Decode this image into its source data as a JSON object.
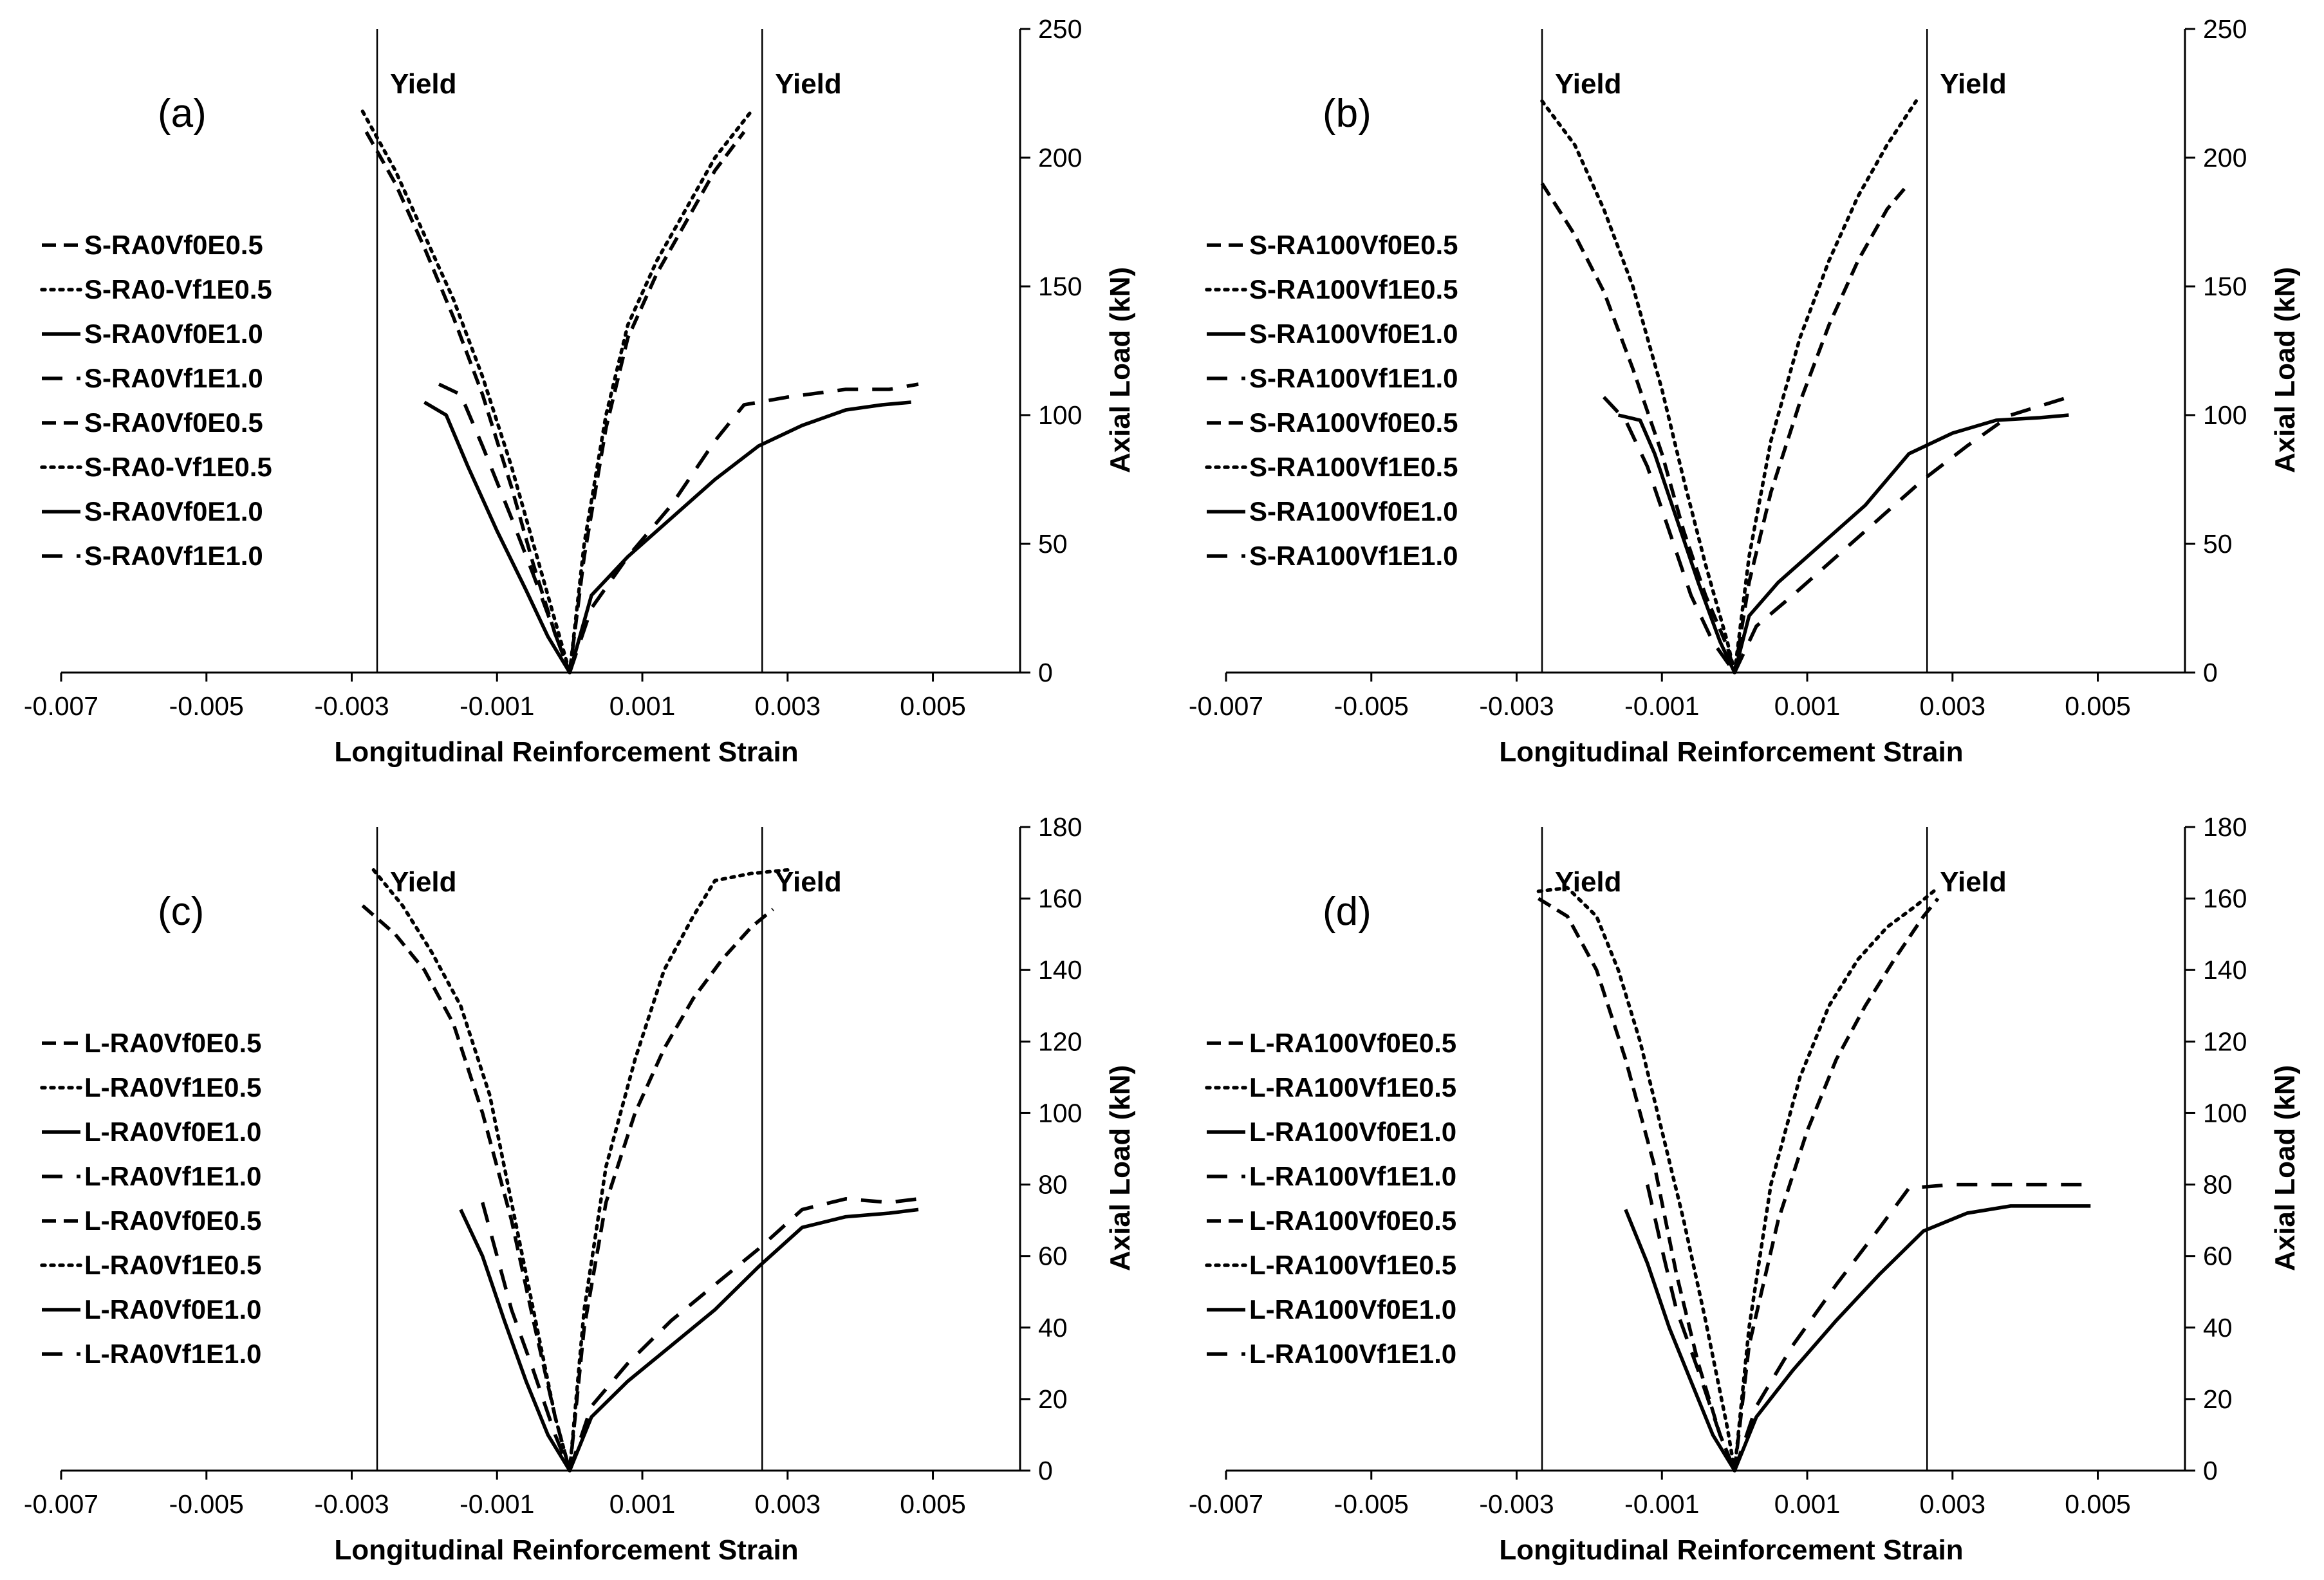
{
  "chart_data": [
    {
      "type": "line",
      "panel_label": "(a)",
      "xlabel": "Longitudinal Reinforcement Strain",
      "ylabel": "Axial Load (kN)",
      "xlim": [
        -0.007,
        0.0062
      ],
      "ylim": [
        0,
        250
      ],
      "x_ticks": [
        "-0.007",
        "-0.005",
        "-0.003",
        "-0.001",
        "0.001",
        "0.003",
        "0.005"
      ],
      "y_ticks": [
        "0",
        "50",
        "100",
        "150",
        "200",
        "250"
      ],
      "yield_lines": [
        {
          "x": -0.00265,
          "label": "Yield"
        },
        {
          "x": 0.00265,
          "label": "Yield"
        }
      ],
      "legend": [
        "S-RA0Vf0E0.5",
        "S-RA0-Vf1E0.5",
        "S-RA0Vf0E1.0",
        "S-RA0Vf1E1.0",
        "S-RA0Vf0E0.5",
        "S-RA0-Vf1E0.5",
        "S-RA0Vf0E1.0",
        "S-RA0Vf1E1.0"
      ],
      "legend_styles": [
        "dash",
        "dot",
        "solid",
        "longdash",
        "dash",
        "dot",
        "solid",
        "longdash"
      ],
      "series": [
        {
          "name": "S-RA0Vf0E0.5 (left)",
          "style": "dash",
          "x": [
            -0.0028,
            -0.0024,
            -0.002,
            -0.0016,
            -0.0012,
            -0.0008,
            -0.0005,
            -0.0002,
            0
          ],
          "y": [
            210,
            190,
            165,
            138,
            108,
            72,
            42,
            15,
            0
          ]
        },
        {
          "name": "S-RA0-Vf1E0.5 (left)",
          "style": "dot",
          "x": [
            -0.00285,
            -0.0024,
            -0.002,
            -0.0016,
            -0.0012,
            -0.0008,
            -0.0005,
            -0.0002,
            0
          ],
          "y": [
            218,
            195,
            170,
            145,
            115,
            80,
            50,
            20,
            0
          ]
        },
        {
          "name": "S-RA0Vf0E1.0 (left)",
          "style": "solid",
          "x": [
            -0.002,
            -0.0017,
            -0.0014,
            -0.001,
            -0.0006,
            -0.0003,
            0
          ],
          "y": [
            105,
            100,
            80,
            55,
            32,
            14,
            0
          ]
        },
        {
          "name": "S-RA0Vf1E1.0 (left)",
          "style": "longdash",
          "x": [
            -0.0018,
            -0.0015,
            -0.0012,
            -0.0008,
            -0.0005,
            -0.0002,
            0
          ],
          "y": [
            112,
            108,
            88,
            60,
            38,
            15,
            0
          ]
        },
        {
          "name": "S-RA0Vf0E0.5 (right)",
          "style": "dash",
          "x": [
            0,
            0.0002,
            0.0005,
            0.0008,
            0.0012,
            0.0016,
            0.002,
            0.0024
          ],
          "y": [
            0,
            45,
            95,
            130,
            155,
            175,
            195,
            210
          ]
        },
        {
          "name": "S-RA0-Vf1E0.5 (right)",
          "style": "dot",
          "x": [
            0,
            0.0002,
            0.0005,
            0.0008,
            0.0012,
            0.0016,
            0.002,
            0.0025
          ],
          "y": [
            0,
            50,
            100,
            135,
            160,
            180,
            200,
            218
          ]
        },
        {
          "name": "S-RA0Vf0E1.0 (right)",
          "style": "solid",
          "x": [
            0,
            0.0003,
            0.0008,
            0.0014,
            0.002,
            0.0026,
            0.0032,
            0.0038,
            0.0043,
            0.0047
          ],
          "y": [
            0,
            30,
            45,
            60,
            75,
            88,
            96,
            102,
            104,
            105
          ]
        },
        {
          "name": "S-RA0Vf1E1.0 (right)",
          "style": "longdash",
          "x": [
            0,
            0.0003,
            0.0008,
            0.0014,
            0.002,
            0.0024,
            0.003,
            0.0038,
            0.0044,
            0.0048
          ],
          "y": [
            0,
            25,
            45,
            65,
            90,
            104,
            107,
            110,
            110,
            112
          ]
        }
      ]
    },
    {
      "type": "line",
      "panel_label": "(b)",
      "xlabel": "Longitudinal Reinforcement Strain",
      "ylabel": "Axial Load (kN)",
      "xlim": [
        -0.007,
        0.0062
      ],
      "ylim": [
        0,
        250
      ],
      "x_ticks": [
        "-0.007",
        "-0.005",
        "-0.003",
        "-0.001",
        "0.001",
        "0.003",
        "0.005"
      ],
      "y_ticks": [
        "0",
        "50",
        "100",
        "150",
        "200",
        "250"
      ],
      "yield_lines": [
        {
          "x": -0.00265,
          "label": "Yield"
        },
        {
          "x": 0.00265,
          "label": "Yield"
        }
      ],
      "legend": [
        "S-RA100Vf0E0.5",
        "S-RA100Vf1E0.5",
        "S-RA100Vf0E1.0",
        "S-RA100Vf1E1.0",
        "S-RA100Vf0E0.5",
        "S-RA100Vf1E0.5",
        "S-RA100Vf0E1.0",
        "S-RA100Vf1E1.0"
      ],
      "legend_styles": [
        "dash",
        "dot",
        "solid",
        "longdash",
        "dash",
        "dot",
        "solid",
        "longdash"
      ],
      "series": [
        {
          "name": "S-RA100Vf0E0.5 (left)",
          "style": "dash",
          "x": [
            -0.00265,
            -0.0022,
            -0.0018,
            -0.0014,
            -0.001,
            -0.0007,
            -0.0004,
            -0.0001,
            0
          ],
          "y": [
            190,
            170,
            148,
            118,
            85,
            55,
            30,
            10,
            0
          ]
        },
        {
          "name": "S-RA100Vf1E0.5 (left)",
          "style": "dot",
          "x": [
            -0.00265,
            -0.0022,
            -0.0018,
            -0.0014,
            -0.001,
            -0.0007,
            -0.0004,
            -0.0001,
            0
          ],
          "y": [
            222,
            205,
            180,
            150,
            110,
            75,
            42,
            12,
            0
          ]
        },
        {
          "name": "S-RA100Vf0E1.0 (left)",
          "style": "solid",
          "x": [
            -0.0016,
            -0.0013,
            -0.0011,
            -0.0008,
            -0.0005,
            -0.0002,
            0
          ],
          "y": [
            100,
            98,
            85,
            60,
            35,
            12,
            0
          ]
        },
        {
          "name": "S-RA100Vf1E1.0 (left)",
          "style": "longdash",
          "x": [
            -0.0018,
            -0.0015,
            -0.0012,
            -0.0009,
            -0.0006,
            -0.0003,
            0
          ],
          "y": [
            107,
            98,
            80,
            55,
            30,
            12,
            0
          ]
        },
        {
          "name": "S-RA100Vf0E0.5 (right)",
          "style": "dash",
          "x": [
            0,
            0.0002,
            0.0005,
            0.0009,
            0.0013,
            0.0017,
            0.0021,
            0.0024
          ],
          "y": [
            0,
            35,
            70,
            105,
            135,
            160,
            180,
            190
          ]
        },
        {
          "name": "S-RA100Vf1E0.5 (right)",
          "style": "dot",
          "x": [
            0,
            0.0002,
            0.0005,
            0.0009,
            0.0013,
            0.0017,
            0.0021,
            0.0025
          ],
          "y": [
            0,
            45,
            90,
            130,
            160,
            185,
            205,
            222
          ]
        },
        {
          "name": "S-RA100Vf0E1.0 (right)",
          "style": "solid",
          "x": [
            0,
            0.0002,
            0.0006,
            0.0012,
            0.0018,
            0.0024,
            0.003,
            0.0036,
            0.0042,
            0.0046
          ],
          "y": [
            0,
            22,
            35,
            50,
            65,
            85,
            93,
            98,
            99,
            100
          ]
        },
        {
          "name": "S-RA100Vf1E1.0 (right)",
          "style": "longdash",
          "x": [
            0,
            0.0003,
            0.0008,
            0.0014,
            0.002,
            0.0026,
            0.0032,
            0.0038,
            0.0046
          ],
          "y": [
            0,
            18,
            30,
            45,
            60,
            75,
            88,
            100,
            107
          ]
        }
      ]
    },
    {
      "type": "line",
      "panel_label": "(c)",
      "xlabel": "Longitudinal Reinforcement Strain",
      "ylabel": "Axial Load (kN)",
      "xlim": [
        -0.007,
        0.0062
      ],
      "ylim": [
        0,
        180
      ],
      "x_ticks": [
        "-0.007",
        "-0.005",
        "-0.003",
        "-0.001",
        "0.001",
        "0.003",
        "0.005"
      ],
      "y_ticks": [
        "0",
        "20",
        "40",
        "60",
        "80",
        "100",
        "120",
        "140",
        "160",
        "180"
      ],
      "yield_lines": [
        {
          "x": -0.00265,
          "label": "Yield"
        },
        {
          "x": 0.00265,
          "label": "Yield"
        }
      ],
      "legend": [
        "L-RA0Vf0E0.5",
        "L-RA0Vf1E0.5",
        "L-RA0Vf0E1.0",
        "L-RA0Vf1E1.0",
        "L-RA0Vf0E0.5",
        "L-RA0Vf1E0.5",
        "L-RA0Vf0E1.0",
        "L-RA0Vf1E1.0"
      ],
      "legend_styles": [
        "dash",
        "dot",
        "solid",
        "longdash",
        "dash",
        "dot",
        "solid",
        "longdash"
      ],
      "series": [
        {
          "name": "L-RA0Vf0E0.5 (left)",
          "style": "dash",
          "x": [
            -0.00285,
            -0.0024,
            -0.002,
            -0.0016,
            -0.0012,
            -0.0008,
            -0.0005,
            -0.0002,
            0
          ],
          "y": [
            158,
            150,
            140,
            125,
            100,
            70,
            42,
            15,
            0
          ]
        },
        {
          "name": "L-RA0Vf1E0.5 (left)",
          "style": "dot",
          "x": [
            -0.0027,
            -0.0023,
            -0.0019,
            -0.0015,
            -0.0011,
            -0.0008,
            -0.0005,
            -0.0002,
            0
          ],
          "y": [
            168,
            158,
            145,
            130,
            105,
            75,
            45,
            15,
            0
          ]
        },
        {
          "name": "L-RA0Vf0E1.0 (left)",
          "style": "solid",
          "x": [
            -0.0015,
            -0.0012,
            -0.0009,
            -0.0006,
            -0.0003,
            0
          ],
          "y": [
            73,
            60,
            42,
            25,
            10,
            0
          ]
        },
        {
          "name": "L-RA0Vf1E1.0 (left)",
          "style": "longdash",
          "x": [
            -0.0012,
            -0.001,
            -0.0008,
            -0.0005,
            -0.0002,
            0
          ],
          "y": [
            75,
            60,
            45,
            28,
            10,
            0
          ]
        },
        {
          "name": "L-RA0Vf0E0.5 (right)",
          "style": "dash",
          "x": [
            0,
            0.0002,
            0.0005,
            0.0009,
            0.0013,
            0.0017,
            0.0021,
            0.0025,
            0.0028
          ],
          "y": [
            0,
            40,
            75,
            100,
            118,
            132,
            143,
            152,
            157
          ]
        },
        {
          "name": "L-RA0Vf1E0.5 (right)",
          "style": "dot",
          "x": [
            0,
            0.0002,
            0.0005,
            0.0009,
            0.0013,
            0.0017,
            0.002,
            0.0025,
            0.003
          ],
          "y": [
            0,
            45,
            85,
            115,
            140,
            155,
            165,
            167,
            168
          ]
        },
        {
          "name": "L-RA0Vf0E1.0 (right)",
          "style": "solid",
          "x": [
            0,
            0.0003,
            0.0008,
            0.0014,
            0.002,
            0.0026,
            0.0032,
            0.0038,
            0.0044,
            0.0048
          ],
          "y": [
            0,
            15,
            25,
            35,
            45,
            57,
            68,
            71,
            72,
            73
          ]
        },
        {
          "name": "L-RA0Vf1E1.0 (right)",
          "style": "longdash",
          "x": [
            0,
            0.0003,
            0.0008,
            0.0014,
            0.002,
            0.0026,
            0.0032,
            0.0038,
            0.0044,
            0.0048
          ],
          "y": [
            0,
            18,
            30,
            42,
            52,
            62,
            73,
            76,
            75,
            76
          ]
        }
      ]
    },
    {
      "type": "line",
      "panel_label": "(d)",
      "xlabel": "Longitudinal Reinforcement Strain",
      "ylabel": "Axial Load (kN)",
      "xlim": [
        -0.007,
        0.0062
      ],
      "ylim": [
        0,
        180
      ],
      "x_ticks": [
        "-0.007",
        "-0.005",
        "-0.003",
        "-0.001",
        "0.001",
        "0.003",
        "0.005"
      ],
      "y_ticks": [
        "0",
        "20",
        "40",
        "60",
        "80",
        "100",
        "120",
        "140",
        "160",
        "180"
      ],
      "yield_lines": [
        {
          "x": -0.00265,
          "label": "Yield"
        },
        {
          "x": 0.00265,
          "label": "Yield"
        }
      ],
      "legend": [
        "L-RA100Vf0E0.5",
        "L-RA100Vf1E0.5",
        "L-RA100Vf0E1.0",
        "L-RA100Vf1E1.0",
        "L-RA100Vf0E0.5",
        "L-RA100Vf1E0.5",
        "L-RA100Vf0E1.0",
        "L-RA100Vf1E1.0"
      ],
      "legend_styles": [
        "dash",
        "dot",
        "solid",
        "longdash",
        "dash",
        "dot",
        "solid",
        "longdash"
      ],
      "series": [
        {
          "name": "L-RA100Vf0E0.5 (left)",
          "style": "dash",
          "x": [
            -0.0027,
            -0.0023,
            -0.0019,
            -0.0015,
            -0.0011,
            -0.0008,
            -0.0005,
            -0.0002,
            0
          ],
          "y": [
            160,
            155,
            140,
            115,
            85,
            55,
            30,
            10,
            0
          ]
        },
        {
          "name": "L-RA100Vf1E0.5 (left)",
          "style": "dot",
          "x": [
            -0.0027,
            -0.0023,
            -0.0019,
            -0.0016,
            -0.0013,
            -0.001,
            -0.0007,
            -0.0004,
            -0.0001,
            0
          ],
          "y": [
            162,
            163,
            155,
            140,
            120,
            95,
            70,
            42,
            12,
            0
          ]
        },
        {
          "name": "L-RA100Vf0E1.0 (left)",
          "style": "solid",
          "x": [
            -0.0015,
            -0.0012,
            -0.0009,
            -0.0006,
            -0.0003,
            0
          ],
          "y": [
            73,
            58,
            40,
            25,
            10,
            0
          ]
        },
        {
          "name": "L-RA100Vf1E1.0 (left)",
          "style": "longdash",
          "x": [
            -0.0012,
            -0.001,
            -0.0008,
            -0.0005,
            -0.0002,
            0
          ],
          "y": [
            80,
            62,
            45,
            28,
            10,
            0
          ]
        },
        {
          "name": "L-RA100Vf0E0.5 (right)",
          "style": "dash",
          "x": [
            0,
            0.0002,
            0.0006,
            0.001,
            0.0014,
            0.0018,
            0.0022,
            0.0026,
            0.0028
          ],
          "y": [
            0,
            35,
            70,
            95,
            115,
            130,
            143,
            155,
            160
          ]
        },
        {
          "name": "L-RA100Vf1E0.5 (right)",
          "style": "dot",
          "x": [
            0,
            0.0002,
            0.0005,
            0.0009,
            0.0013,
            0.0017,
            0.0021,
            0.0025,
            0.0028
          ],
          "y": [
            0,
            40,
            80,
            110,
            130,
            143,
            152,
            158,
            163
          ]
        },
        {
          "name": "L-RA100Vf0E1.0 (right)",
          "style": "solid",
          "x": [
            0,
            0.0003,
            0.0008,
            0.0014,
            0.002,
            0.0026,
            0.0032,
            0.0038,
            0.0044,
            0.0049
          ],
          "y": [
            0,
            15,
            28,
            42,
            55,
            67,
            72,
            74,
            74,
            74
          ]
        },
        {
          "name": "L-RA100Vf1E1.0 (right)",
          "style": "longdash",
          "x": [
            0,
            0.0003,
            0.0008,
            0.0014,
            0.002,
            0.0024,
            0.003,
            0.0038,
            0.0044,
            0.0049
          ],
          "y": [
            0,
            18,
            35,
            52,
            68,
            79,
            80,
            80,
            80,
            80
          ]
        }
      ]
    }
  ]
}
